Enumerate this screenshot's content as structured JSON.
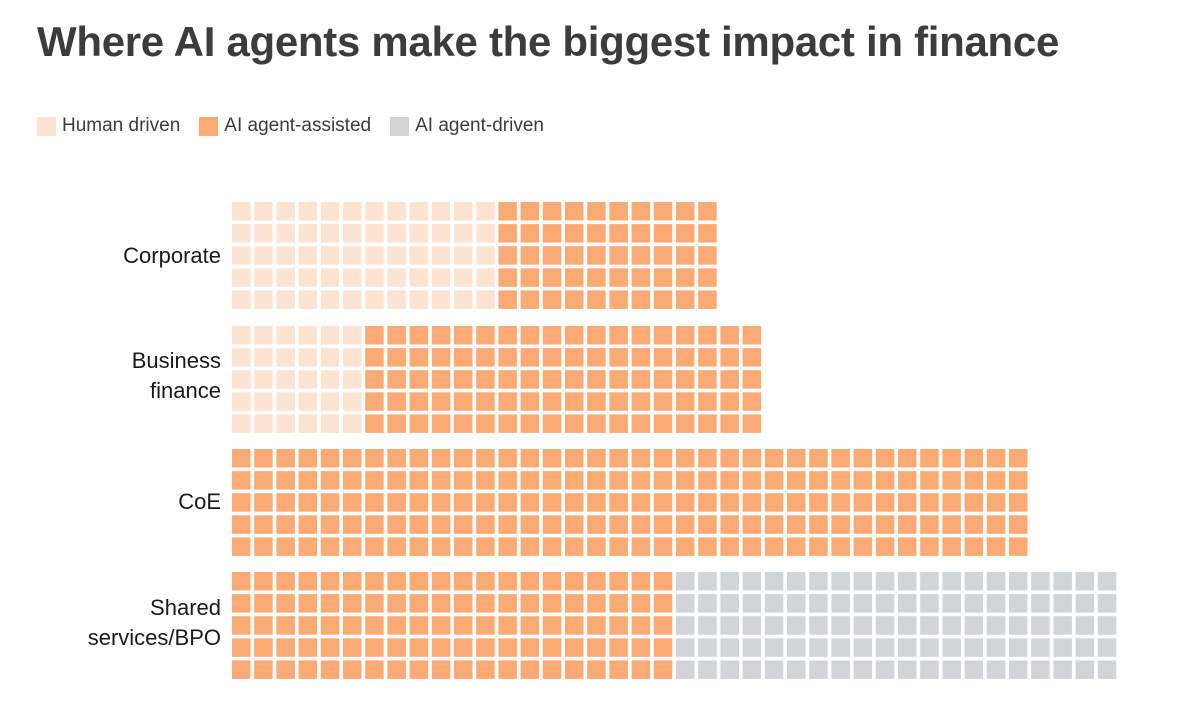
{
  "chart_data": {
    "type": "waffle",
    "title": "Where AI agents make the biggest impact in finance",
    "legend": {
      "placement": "top-left",
      "items": [
        {
          "key": "human",
          "label": "Human driven",
          "color": "#fde4d2"
        },
        {
          "key": "assisted",
          "label": "AI agent-assisted",
          "color": "#fcaa74"
        },
        {
          "key": "driven",
          "label": "AI agent-driven",
          "color": "#d1d5d8"
        }
      ]
    },
    "rows_per_group": 5,
    "categories": [
      {
        "name": "Corporate",
        "label_lines": [
          "Corporate"
        ],
        "columns": {
          "human": 12,
          "assisted": 10,
          "driven": 0
        }
      },
      {
        "name": "Business finance",
        "label_lines": [
          "Business",
          "finance"
        ],
        "columns": {
          "human": 6,
          "assisted": 18,
          "driven": 0
        }
      },
      {
        "name": "CoE",
        "label_lines": [
          "CoE"
        ],
        "columns": {
          "human": 0,
          "assisted": 36,
          "driven": 0
        }
      },
      {
        "name": "Shared services/BPO",
        "label_lines": [
          "Shared",
          "services/BPO"
        ],
        "columns": {
          "human": 0,
          "assisted": 20,
          "driven": 20
        }
      }
    ]
  }
}
